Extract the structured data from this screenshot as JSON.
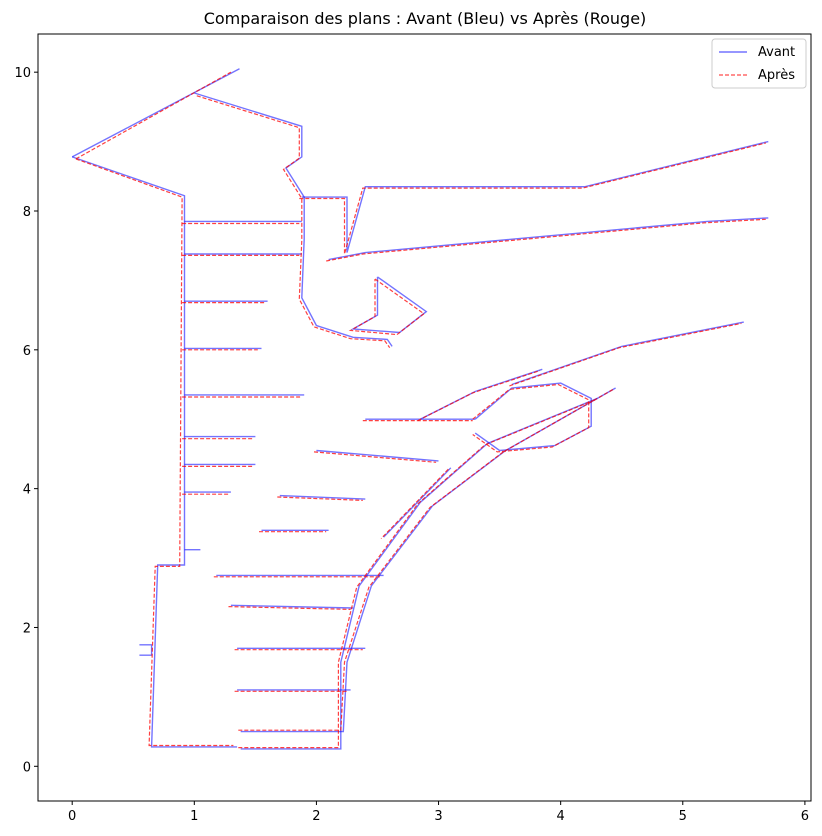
{
  "chart_data": {
    "type": "line",
    "title": "Comparaison des plans : Avant (Bleu) vs Après (Rouge)",
    "xlabel": "",
    "ylabel": "",
    "xlim": [
      -0.28,
      6.05
    ],
    "ylim": [
      -0.5,
      10.55
    ],
    "xticks": [
      0,
      1,
      2,
      3,
      4,
      5,
      6
    ],
    "yticks": [
      0,
      2,
      4,
      6,
      8,
      10
    ],
    "grid": false,
    "legend_position": "top-right",
    "series": [
      {
        "name": "Avant",
        "color": "#0000ff",
        "style": "solid",
        "segments": [
          [
            [
              0.0,
              8.78
            ],
            [
              1.37,
              10.05
            ]
          ],
          [
            [
              0.0,
              8.78
            ],
            [
              0.92,
              8.22
            ],
            [
              0.92,
              2.9
            ],
            [
              0.7,
              2.9
            ],
            [
              0.65,
              0.28
            ],
            [
              1.35,
              0.28
            ]
          ],
          [
            [
              0.92,
              7.85
            ],
            [
              1.88,
              7.85
            ]
          ],
          [
            [
              0.92,
              7.38
            ],
            [
              1.88,
              7.38
            ]
          ],
          [
            [
              0.92,
              6.7
            ],
            [
              1.6,
              6.7
            ]
          ],
          [
            [
              0.92,
              6.02
            ],
            [
              1.55,
              6.02
            ]
          ],
          [
            [
              0.92,
              5.35
            ],
            [
              1.9,
              5.35
            ]
          ],
          [
            [
              0.92,
              4.75
            ],
            [
              1.5,
              4.75
            ]
          ],
          [
            [
              0.92,
              4.35
            ],
            [
              1.5,
              4.35
            ]
          ],
          [
            [
              0.92,
              3.95
            ],
            [
              1.3,
              3.95
            ]
          ],
          [
            [
              0.92,
              3.12
            ],
            [
              1.05,
              3.12
            ]
          ],
          [
            [
              1.0,
              9.7
            ],
            [
              1.88,
              9.22
            ],
            [
              1.88,
              8.78
            ],
            [
              1.75,
              8.62
            ],
            [
              1.9,
              8.2
            ],
            [
              1.9,
              7.6
            ],
            [
              1.88,
              6.75
            ],
            [
              2.0,
              6.35
            ],
            [
              2.3,
              6.18
            ],
            [
              2.58,
              6.15
            ],
            [
              2.62,
              6.05
            ]
          ],
          [
            [
              1.88,
              8.2
            ],
            [
              2.25,
              8.2
            ],
            [
              2.25,
              7.4
            ],
            [
              2.4,
              8.35
            ],
            [
              4.2,
              8.35
            ],
            [
              5.7,
              9.0
            ]
          ],
          [
            [
              2.5,
              7.05
            ],
            [
              2.9,
              6.55
            ],
            [
              2.68,
              6.25
            ],
            [
              2.3,
              6.3
            ],
            [
              2.5,
              6.5
            ],
            [
              2.5,
              7.05
            ]
          ],
          [
            [
              2.1,
              7.3
            ],
            [
              2.4,
              7.4
            ],
            [
              5.2,
              7.85
            ],
            [
              5.7,
              7.9
            ]
          ],
          [
            [
              1.38,
              0.25
            ],
            [
              2.2,
              0.25
            ],
            [
              2.2,
              1.5
            ],
            [
              2.35,
              2.6
            ],
            [
              2.85,
              3.8
            ],
            [
              3.4,
              4.65
            ],
            [
              4.3,
              5.3
            ]
          ],
          [
            [
              1.38,
              0.5
            ],
            [
              2.22,
              0.5
            ],
            [
              2.25,
              1.5
            ],
            [
              2.45,
              2.6
            ],
            [
              2.95,
              3.75
            ],
            [
              3.55,
              4.55
            ],
            [
              4.45,
              5.45
            ]
          ],
          [
            [
              3.3,
              5.0
            ],
            [
              3.6,
              5.45
            ],
            [
              4.0,
              5.52
            ],
            [
              4.25,
              5.3
            ],
            [
              4.25,
              4.9
            ],
            [
              3.95,
              4.62
            ],
            [
              3.5,
              4.55
            ],
            [
              3.3,
              4.8
            ]
          ],
          [
            [
              3.6,
              5.5
            ],
            [
              4.5,
              6.05
            ],
            [
              5.5,
              6.4
            ]
          ],
          [
            [
              1.18,
              2.75
            ],
            [
              2.55,
              2.75
            ]
          ],
          [
            [
              1.3,
              2.32
            ],
            [
              2.3,
              2.28
            ]
          ],
          [
            [
              1.35,
              1.7
            ],
            [
              2.4,
              1.7
            ]
          ],
          [
            [
              1.35,
              1.1
            ],
            [
              2.28,
              1.1
            ]
          ],
          [
            [
              1.55,
              3.4
            ],
            [
              2.1,
              3.4
            ]
          ],
          [
            [
              1.7,
              3.9
            ],
            [
              2.4,
              3.85
            ]
          ],
          [
            [
              2.0,
              4.55
            ],
            [
              3.0,
              4.4
            ]
          ],
          [
            [
              2.4,
              5.0
            ],
            [
              3.3,
              5.0
            ]
          ],
          [
            [
              3.1,
              4.3
            ],
            [
              2.55,
              3.3
            ]
          ],
          [
            [
              0.55,
              1.75
            ],
            [
              0.65,
              1.75
            ],
            [
              0.65,
              1.6
            ],
            [
              0.55,
              1.6
            ]
          ],
          [
            [
              2.85,
              5.0
            ],
            [
              3.3,
              5.4
            ],
            [
              3.85,
              5.72
            ]
          ]
        ]
      },
      {
        "name": "Après",
        "color": "#ff0000",
        "style": "dashed",
        "segments": [
          [
            [
              0.03,
              8.75
            ],
            [
              1.3,
              10.0
            ]
          ],
          [
            [
              0.03,
              8.75
            ],
            [
              0.9,
              8.2
            ],
            [
              0.88,
              2.88
            ],
            [
              0.68,
              2.88
            ],
            [
              0.63,
              0.3
            ],
            [
              1.32,
              0.3
            ]
          ],
          [
            [
              0.9,
              7.82
            ],
            [
              1.86,
              7.82
            ]
          ],
          [
            [
              0.9,
              7.36
            ],
            [
              1.86,
              7.36
            ]
          ],
          [
            [
              0.9,
              6.68
            ],
            [
              1.58,
              6.68
            ]
          ],
          [
            [
              0.9,
              6.0
            ],
            [
              1.52,
              6.0
            ]
          ],
          [
            [
              0.9,
              5.32
            ],
            [
              1.88,
              5.32
            ]
          ],
          [
            [
              0.9,
              4.72
            ],
            [
              1.48,
              4.72
            ]
          ],
          [
            [
              0.9,
              4.32
            ],
            [
              1.48,
              4.32
            ]
          ],
          [
            [
              0.9,
              3.92
            ],
            [
              1.28,
              3.92
            ]
          ],
          [
            [
              1.02,
              9.66
            ],
            [
              1.86,
              9.2
            ],
            [
              1.86,
              8.76
            ],
            [
              1.73,
              8.6
            ],
            [
              1.88,
              8.18
            ],
            [
              1.88,
              7.58
            ],
            [
              1.86,
              6.73
            ],
            [
              1.98,
              6.33
            ],
            [
              2.28,
              6.16
            ],
            [
              2.56,
              6.13
            ],
            [
              2.6,
              6.03
            ]
          ],
          [
            [
              1.86,
              8.18
            ],
            [
              2.23,
              8.18
            ],
            [
              2.23,
              7.38
            ],
            [
              2.38,
              8.33
            ],
            [
              4.18,
              8.33
            ],
            [
              5.68,
              8.98
            ]
          ],
          [
            [
              2.48,
              7.02
            ],
            [
              2.88,
              6.52
            ],
            [
              2.66,
              6.22
            ],
            [
              2.28,
              6.28
            ],
            [
              2.48,
              6.48
            ],
            [
              2.48,
              7.02
            ]
          ],
          [
            [
              2.08,
              7.28
            ],
            [
              2.38,
              7.38
            ],
            [
              5.18,
              7.83
            ],
            [
              5.68,
              7.88
            ]
          ],
          [
            [
              1.36,
              0.27
            ],
            [
              2.18,
              0.27
            ],
            [
              2.18,
              1.5
            ],
            [
              2.33,
              2.58
            ],
            [
              2.83,
              3.78
            ],
            [
              3.38,
              4.63
            ],
            [
              4.28,
              5.28
            ]
          ],
          [
            [
              1.36,
              0.52
            ],
            [
              2.2,
              0.52
            ],
            [
              2.23,
              1.5
            ],
            [
              2.43,
              2.58
            ],
            [
              2.93,
              3.73
            ],
            [
              3.53,
              4.53
            ],
            [
              4.43,
              5.43
            ]
          ],
          [
            [
              3.28,
              5.0
            ],
            [
              3.58,
              5.43
            ],
            [
              3.98,
              5.5
            ],
            [
              4.23,
              5.28
            ],
            [
              4.23,
              4.88
            ],
            [
              3.93,
              4.6
            ],
            [
              3.48,
              4.53
            ],
            [
              3.28,
              4.78
            ]
          ],
          [
            [
              3.58,
              5.48
            ],
            [
              4.48,
              6.03
            ],
            [
              5.48,
              6.38
            ]
          ],
          [
            [
              1.16,
              2.73
            ],
            [
              2.53,
              2.73
            ]
          ],
          [
            [
              1.28,
              2.3
            ],
            [
              2.28,
              2.26
            ]
          ],
          [
            [
              1.33,
              1.68
            ],
            [
              2.38,
              1.68
            ]
          ],
          [
            [
              1.33,
              1.08
            ],
            [
              2.26,
              1.08
            ]
          ],
          [
            [
              1.53,
              3.38
            ],
            [
              2.08,
              3.38
            ]
          ],
          [
            [
              1.68,
              3.88
            ],
            [
              2.38,
              3.83
            ]
          ],
          [
            [
              1.98,
              4.53
            ],
            [
              2.98,
              4.38
            ]
          ],
          [
            [
              2.38,
              4.98
            ],
            [
              3.28,
              4.98
            ]
          ],
          [
            [
              3.08,
              4.28
            ],
            [
              2.53,
              3.28
            ]
          ],
          [
            [
              2.83,
              4.98
            ],
            [
              3.28,
              5.38
            ],
            [
              3.83,
              5.7
            ]
          ]
        ]
      }
    ],
    "legend": [
      "Avant",
      "Après"
    ]
  }
}
